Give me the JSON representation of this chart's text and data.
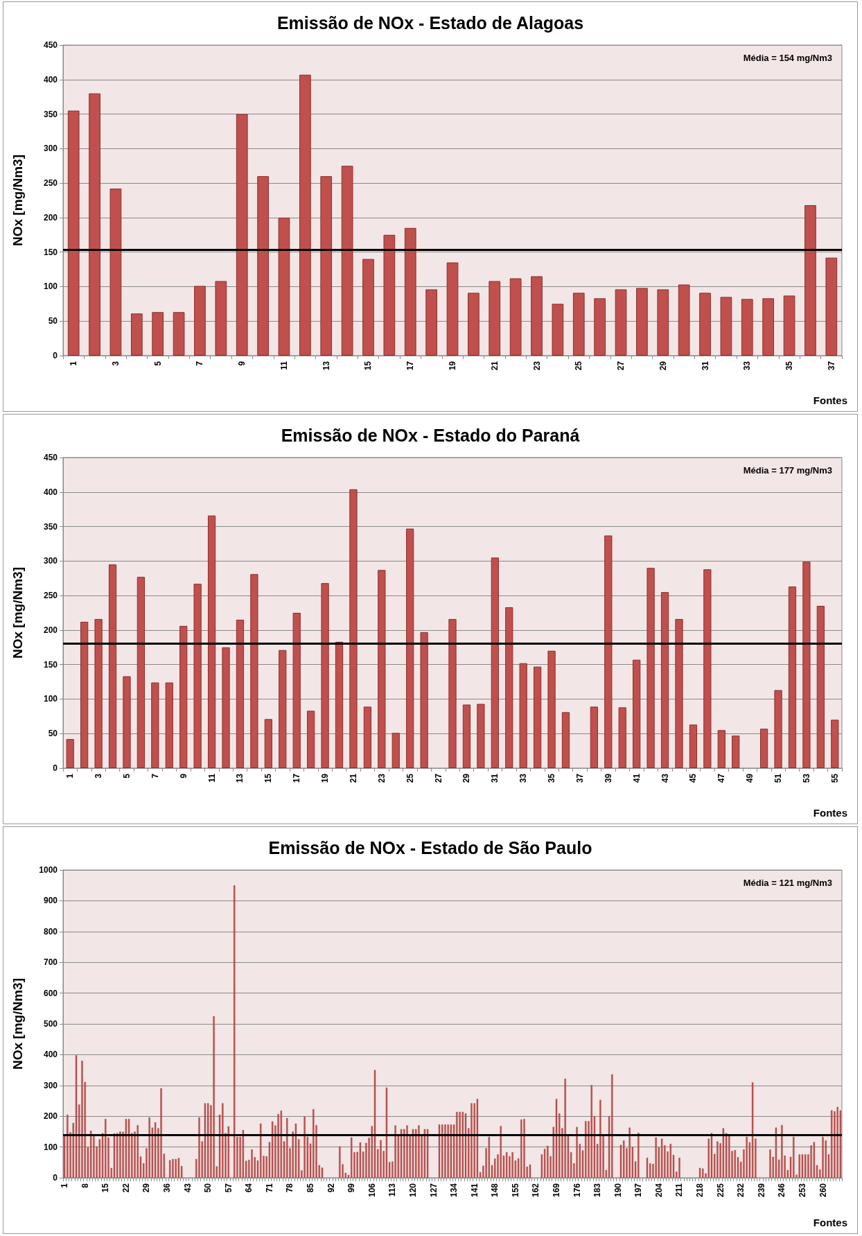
{
  "chart_data": [
    {
      "type": "bar",
      "title": "Emissão de NOx - Estado de Alagoas",
      "xlabel": "Fontes",
      "ylabel": "NOx [mg/Nm3]",
      "categories": [
        "1",
        null,
        "3",
        null,
        "5",
        null,
        "7",
        null,
        "9",
        null,
        "11",
        null,
        "13",
        null,
        "15",
        null,
        "17",
        null,
        "19",
        null,
        "21",
        null,
        "23",
        null,
        "25",
        null,
        "27",
        null,
        "29",
        null,
        "31",
        null,
        "33",
        null,
        "35",
        null,
        "37"
      ],
      "values": [
        355,
        380,
        242,
        61,
        63,
        63,
        101,
        108,
        350,
        260,
        200,
        407,
        260,
        275,
        140,
        175,
        185,
        96,
        135,
        91,
        108,
        112,
        115,
        75,
        91,
        83,
        96,
        98,
        96,
        103,
        91,
        85,
        82,
        83,
        87,
        218,
        142
      ],
      "color": "#c0504d",
      "ylim": [
        0,
        450
      ],
      "yticks": [
        0,
        50,
        100,
        150,
        200,
        250,
        300,
        350,
        400,
        450
      ],
      "grid": "y",
      "ref_lines": [
        {
          "axis": "y",
          "value": 153,
          "color": "#000000"
        }
      ],
      "annotations": [
        "Média = 154 mg/Nm3"
      ]
    },
    {
      "type": "bar",
      "title": "Emissão de NOx - Estado do Paraná",
      "xlabel": "Fontes",
      "ylabel": "NOx [mg/Nm3]",
      "categories": [
        "1",
        null,
        "3",
        null,
        "5",
        null,
        "7",
        null,
        "9",
        null,
        "11",
        null,
        "13",
        null,
        "15",
        null,
        "17",
        null,
        "19",
        null,
        "21",
        null,
        "23",
        null,
        "25",
        null,
        "27",
        null,
        "29",
        null,
        "31",
        null,
        "33",
        null,
        "35",
        null,
        "37",
        null,
        "39",
        null,
        "41",
        null,
        "43",
        null,
        "45",
        null,
        "47",
        null,
        "49",
        null,
        "51",
        null,
        "53",
        null,
        "55"
      ],
      "values": [
        42,
        212,
        216,
        295,
        133,
        277,
        124,
        124,
        206,
        267,
        366,
        175,
        215,
        281,
        71,
        171,
        225,
        83,
        268,
        183,
        404,
        89,
        287,
        51,
        347,
        197,
        null,
        216,
        92,
        93,
        305,
        233,
        152,
        147,
        170,
        81,
        null,
        89,
        337,
        88,
        157,
        290,
        255,
        216,
        63,
        288,
        55,
        47,
        null,
        57,
        113,
        263,
        299,
        235,
        70
      ],
      "color": "#c0504d",
      "ylim": [
        0,
        450
      ],
      "yticks": [
        0,
        50,
        100,
        150,
        200,
        250,
        300,
        350,
        400,
        450
      ],
      "grid": "y",
      "ref_lines": [
        {
          "axis": "y",
          "value": 181,
          "color": "#000000"
        }
      ],
      "annotations": [
        "Média = 177 mg/Nm3"
      ]
    },
    {
      "type": "bar",
      "title": "Emissão de NOx - Estado de São Paulo",
      "xlabel": "Fontes",
      "ylabel": "NOx [mg/Nm3]",
      "categories": [
        "1",
        null,
        null,
        null,
        null,
        null,
        null,
        "8",
        null,
        null,
        null,
        null,
        null,
        null,
        "15",
        null,
        null,
        null,
        null,
        null,
        null,
        "22",
        null,
        null,
        null,
        null,
        null,
        null,
        "29",
        null,
        null,
        null,
        null,
        null,
        null,
        "36",
        null,
        null,
        null,
        null,
        null,
        null,
        "43",
        null,
        null,
        null,
        null,
        null,
        null,
        "50",
        null,
        null,
        null,
        null,
        null,
        null,
        "57",
        null,
        null,
        null,
        null,
        null,
        null,
        "64",
        null,
        null,
        null,
        null,
        null,
        null,
        "71",
        null,
        null,
        null,
        null,
        null,
        null,
        "78",
        null,
        null,
        null,
        null,
        null,
        null,
        "85",
        null,
        null,
        null,
        null,
        null,
        null,
        "92",
        null,
        null,
        null,
        null,
        null,
        null,
        "99",
        null,
        null,
        null,
        null,
        null,
        null,
        "106",
        null,
        null,
        null,
        null,
        null,
        null,
        "113",
        null,
        null,
        null,
        null,
        null,
        null,
        "120",
        null,
        null,
        null,
        null,
        null,
        null,
        "127",
        null,
        null,
        null,
        null,
        null,
        null,
        "134",
        null,
        null,
        null,
        null,
        null,
        null,
        "141",
        null,
        null,
        null,
        null,
        null,
        null,
        "148",
        null,
        null,
        null,
        null,
        null,
        null,
        "155",
        null,
        null,
        null,
        null,
        null,
        null,
        "162",
        null,
        null,
        null,
        null,
        null,
        null,
        "169",
        null,
        null,
        null,
        null,
        null,
        null,
        "176",
        null,
        null,
        null,
        null,
        null,
        null,
        "183",
        null,
        null,
        null,
        null,
        null,
        null,
        "190",
        null,
        null,
        null,
        null,
        null,
        null,
        "197",
        null,
        null,
        null,
        null,
        null,
        null,
        "204",
        null,
        null,
        null,
        null,
        null,
        null,
        "211",
        null,
        null,
        null,
        null,
        null,
        null,
        "218",
        null,
        null,
        null,
        null,
        null,
        null,
        "225",
        null,
        null,
        null,
        null,
        null,
        null,
        "232",
        null,
        null,
        null,
        null,
        null,
        null,
        "239",
        null,
        null,
        null,
        null,
        null,
        null,
        "246",
        null,
        null,
        null,
        null,
        null,
        null,
        "253",
        null,
        null,
        null,
        null,
        null,
        null,
        "260",
        null,
        null,
        null,
        null,
        null,
        null
      ],
      "values": [
        135,
        205,
        148,
        178,
        398,
        238,
        380,
        311,
        99,
        153,
        135,
        102,
        125,
        145,
        191,
        131,
        32,
        144,
        145,
        150,
        149,
        191,
        191,
        145,
        150,
        171,
        69,
        47,
        96,
        196,
        163,
        180,
        161,
        291,
        78,
        null,
        57,
        61,
        61,
        64,
        38,
        null,
        null,
        null,
        null,
        61,
        196,
        118,
        242,
        242,
        236,
        525,
        37,
        205,
        242,
        145,
        167,
        null,
        950,
        133,
        133,
        155,
        55,
        58,
        92,
        67,
        56,
        176,
        71,
        70,
        116,
        183,
        170,
        207,
        218,
        118,
        194,
        96,
        150,
        176,
        125,
        24,
        199,
        133,
        111,
        223,
        171,
        41,
        33,
        null,
        null,
        null,
        null,
        null,
        102,
        44,
        16,
        9,
        131,
        83,
        84,
        115,
        85,
        113,
        130,
        168,
        350,
        93,
        122,
        87,
        293,
        51,
        53,
        170,
        138,
        158,
        158,
        170,
        138,
        158,
        158,
        170,
        138,
        158,
        158,
        null,
        null,
        null,
        173,
        173,
        173,
        173,
        173,
        173,
        214,
        214,
        214,
        209,
        161,
        242,
        242,
        256,
        18,
        39,
        96,
        133,
        41,
        62,
        76,
        168,
        72,
        83,
        70,
        83,
        56,
        63,
        189,
        191,
        36,
        43,
        null,
        null,
        null,
        76,
        94,
        104,
        70,
        165,
        256,
        209,
        161,
        322,
        135,
        83,
        47,
        165,
        110,
        89,
        184,
        184,
        301,
        200,
        110,
        253,
        135,
        25,
        200,
        336,
        null,
        null,
        107,
        121,
        96,
        163,
        100,
        53,
        146,
        null,
        null,
        65,
        47,
        45,
        131,
        99,
        127,
        105,
        85,
        110,
        74,
        20,
        65,
        null,
        null,
        null,
        null,
        null,
        null,
        32,
        30,
        14,
        127,
        145,
        77,
        118,
        112,
        161,
        145,
        137,
        87,
        90,
        67,
        52,
        92,
        133,
        115,
        310,
        127,
        null,
        null,
        null,
        null,
        92,
        68,
        163,
        59,
        171,
        72,
        25,
        68,
        133,
        10,
        76,
        76,
        76,
        76,
        105,
        116,
        41,
        27,
        133,
        121,
        76,
        219,
        216,
        230,
        219
      ],
      "color": "#c0504d",
      "ylim": [
        0,
        1000
      ],
      "yticks": [
        0,
        100,
        200,
        300,
        400,
        500,
        600,
        700,
        800,
        900,
        1000
      ],
      "grid": "y",
      "ref_lines": [
        {
          "axis": "y",
          "value": 138,
          "color": "#000000"
        }
      ],
      "annotations": [
        "Média = 121 mg/Nm3"
      ]
    }
  ]
}
